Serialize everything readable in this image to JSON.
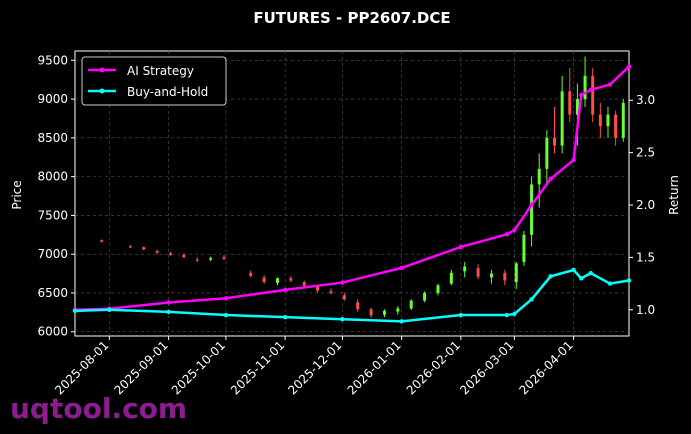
{
  "chart_data": {
    "type": "candlestick",
    "title": "FUTURES - PP2607.DCE",
    "y_label": "Price",
    "y2_label": "Return",
    "watermark": "uqtool.com",
    "xlim": [
      "2025-07-14",
      "2026-04-30"
    ],
    "xticks": [
      "2025-08-01",
      "2025-09-01",
      "2025-10-01",
      "2025-11-01",
      "2025-12-01",
      "2026-01-01",
      "2026-02-01",
      "2026-03-01",
      "2026-04-01"
    ],
    "ylim": [
      5945,
      9620
    ],
    "yticks": [
      6000,
      6500,
      7000,
      7500,
      8000,
      8500,
      9000,
      9500
    ],
    "y2lim": [
      0.75,
      3.47
    ],
    "y2ticks": [
      {
        "value": 1,
        "label": "1.0"
      },
      {
        "value": 1.5,
        "label": "1.5"
      },
      {
        "value": 2,
        "label": "2.0"
      },
      {
        "value": 2.5,
        "label": "2.5"
      },
      {
        "value": 3,
        "label": "3.0"
      }
    ],
    "grid": true,
    "legend": "upper left",
    "up_color": "#66ff33",
    "down_color": "#ff4d4d",
    "candles": {
      "x": [
        "2025-07-28",
        "2025-08-12",
        "2025-08-19",
        "2025-08-26",
        "2025-09-02",
        "2025-09-09",
        "2025-09-16",
        "2025-09-23",
        "2025-09-30",
        "2025-10-14",
        "2025-10-21",
        "2025-10-28",
        "2025-11-04",
        "2025-11-11",
        "2025-11-18",
        "2025-11-25",
        "2025-12-02",
        "2025-12-09",
        "2025-12-16",
        "2025-12-23",
        "2025-12-30",
        "2026-01-06",
        "2026-01-13",
        "2026-01-20",
        "2026-01-27",
        "2026-02-03",
        "2026-02-10",
        "2026-02-17",
        "2026-02-24",
        "2026-03-02",
        "2026-03-06",
        "2026-03-10",
        "2026-03-14",
        "2026-03-18",
        "2026-03-22",
        "2026-03-26",
        "2026-03-30",
        "2026-04-03",
        "2026-04-07",
        "2026-04-11",
        "2026-04-15",
        "2026-04-19",
        "2026-04-23",
        "2026-04-27"
      ],
      "open": [
        7180,
        7100,
        7090,
        7040,
        7010,
        6990,
        6930,
        6930,
        6960,
        6760,
        6700,
        6630,
        6690,
        6640,
        6580,
        6520,
        6470,
        6380,
        6290,
        6220,
        6260,
        6300,
        6400,
        6500,
        6620,
        6780,
        6820,
        6700,
        6760,
        6640,
        6900,
        7250,
        7900,
        8100,
        8500,
        8400,
        9100,
        8800,
        9000,
        9300,
        8800,
        8650,
        8800,
        8500
      ],
      "high": [
        7190,
        7120,
        7100,
        7060,
        7030,
        7010,
        6960,
        6970,
        6990,
        6790,
        6730,
        6700,
        6720,
        6660,
        6610,
        6560,
        6500,
        6420,
        6310,
        6290,
        6330,
        6420,
        6520,
        6620,
        6800,
        6900,
        6870,
        6800,
        6800,
        6900,
        7300,
        8000,
        8300,
        8600,
        8900,
        9300,
        9400,
        9200,
        9550,
        9400,
        8950,
        8900,
        8850,
        9000
      ],
      "low": [
        7150,
        7080,
        7050,
        7000,
        6980,
        6950,
        6900,
        6910,
        6920,
        6700,
        6620,
        6600,
        6640,
        6570,
        6500,
        6480,
        6400,
        6260,
        6180,
        6190,
        6220,
        6280,
        6380,
        6470,
        6600,
        6700,
        6680,
        6620,
        6600,
        6550,
        6850,
        7100,
        7600,
        7900,
        8300,
        8300,
        8700,
        8400,
        8900,
        8700,
        8500,
        8500,
        8400,
        8450
      ],
      "close": [
        7160,
        7090,
        7060,
        7020,
        6990,
        6960,
        6920,
        6950,
        6940,
        6720,
        6640,
        6690,
        6660,
        6590,
        6530,
        6500,
        6420,
        6290,
        6210,
        6270,
        6300,
        6400,
        6500,
        6600,
        6760,
        6840,
        6710,
        6750,
        6660,
        6880,
        7250,
        7900,
        8100,
        8500,
        8400,
        9100,
        8800,
        9000,
        9300,
        8800,
        8650,
        8800,
        8500,
        8950
      ]
    },
    "x": [
      "2025-07-14",
      "2025-08-01",
      "2025-09-01",
      "2025-10-01",
      "2025-11-01",
      "2025-12-01",
      "2026-01-01",
      "2026-02-01",
      "2026-02-25",
      "2026-03-01",
      "2026-03-10",
      "2026-03-20",
      "2026-04-01",
      "2026-04-05",
      "2026-04-10",
      "2026-04-20",
      "2026-04-30"
    ],
    "series": [
      {
        "name": "AI Strategy",
        "color": "#ff00ff",
        "axis": "y2",
        "values": [
          1.0,
          1.01,
          1.07,
          1.11,
          1.19,
          1.26,
          1.4,
          1.6,
          1.72,
          1.76,
          2.0,
          2.25,
          2.43,
          3.05,
          3.1,
          3.15,
          3.32
        ]
      },
      {
        "name": "Buy-and-Hold",
        "color": "#00ffff",
        "axis": "y2",
        "values": [
          0.99,
          1.0,
          0.98,
          0.95,
          0.93,
          0.91,
          0.89,
          0.95,
          0.95,
          0.96,
          1.1,
          1.32,
          1.38,
          1.3,
          1.35,
          1.25,
          1.28
        ]
      }
    ]
  }
}
